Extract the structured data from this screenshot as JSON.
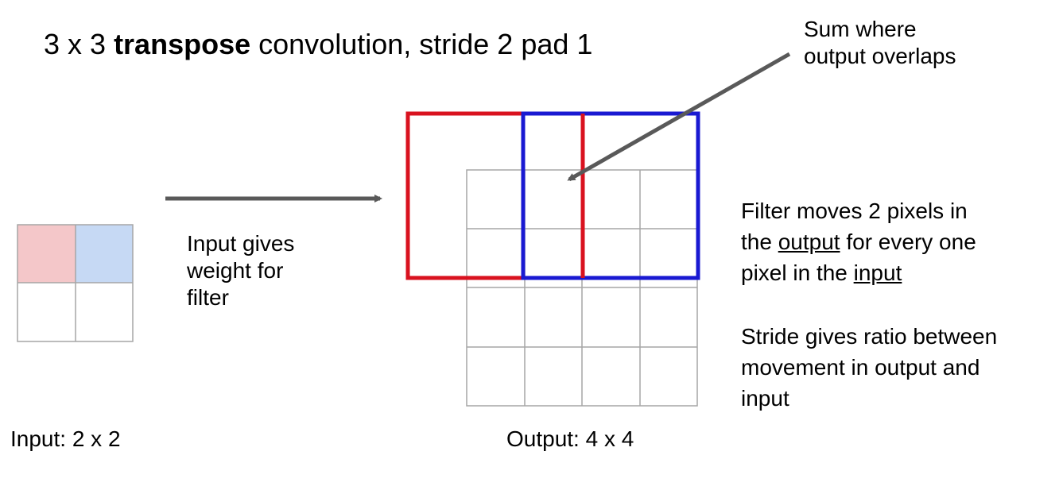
{
  "title": {
    "prefix": "3 x 3 ",
    "bold": "transpose",
    "suffix": " convolution, stride 2 pad 1"
  },
  "annotations": {
    "sum_line1": "Sum where",
    "sum_line2": "output overlaps",
    "input_line1": "Input gives",
    "input_line2": "weight for",
    "input_line3": "filter",
    "filter_line1": "Filter moves 2 pixels in",
    "filter_line2_pre": "the ",
    "filter_line2_u": "output",
    "filter_line2_post": " for every one",
    "filter_line3_pre": "pixel in the ",
    "filter_line3_u": "input",
    "stride_line1": "Stride gives ratio between",
    "stride_line2": "movement in output and",
    "stride_line3": "input"
  },
  "labels": {
    "input": "Input: 2 x 2",
    "output": "Output: 4 x 4"
  },
  "colors": {
    "red_cell": "#f4c7c9",
    "blue_cell": "#c6d9f4",
    "red_filter": "#d9121f",
    "blue_filter": "#1919d2",
    "grid": "#a6a6a6",
    "arrow": "#595959"
  }
}
